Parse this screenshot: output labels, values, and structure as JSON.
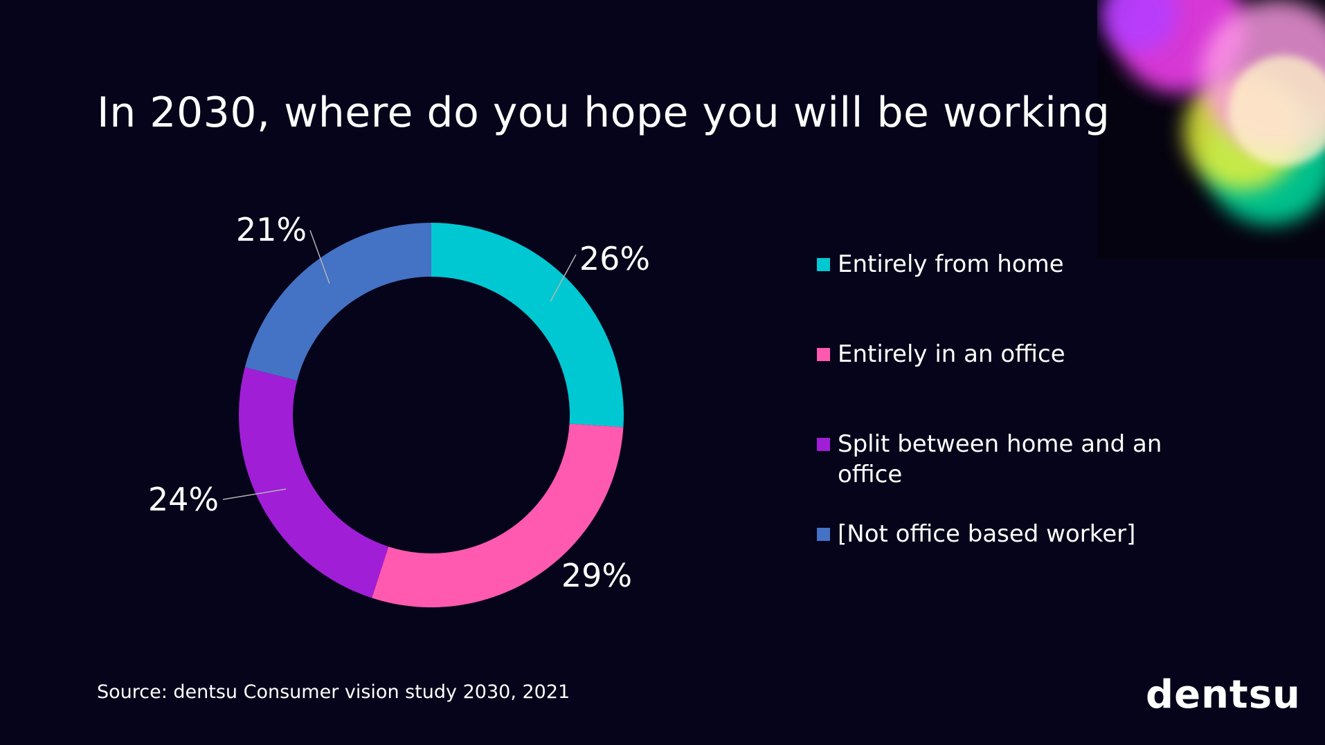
{
  "page": {
    "title": "In 2030, where do you hope you will be working",
    "source": "Source: dentsu Consumer vision study 2030, 2021",
    "logo": "dentsu"
  },
  "colors": {
    "background": "#06041a",
    "leader_line": "#b4b4b4"
  },
  "chart_data": {
    "type": "donut",
    "title": "In 2030, where do you hope you will be working",
    "unit": "%",
    "legend_position": "right",
    "slices": [
      {
        "label": "Entirely from home",
        "value": 26,
        "display": "26%",
        "color": "#00c8d2"
      },
      {
        "label": "Entirely in an office",
        "value": 29,
        "display": "29%",
        "color": "#ff59b0"
      },
      {
        "label": "Split between home and an office",
        "value": 24,
        "display": "24%",
        "color": "#a01ed6"
      },
      {
        "label": "[Not office based worker]",
        "value": 21,
        "display": "21%",
        "color": "#4472c4"
      }
    ]
  }
}
